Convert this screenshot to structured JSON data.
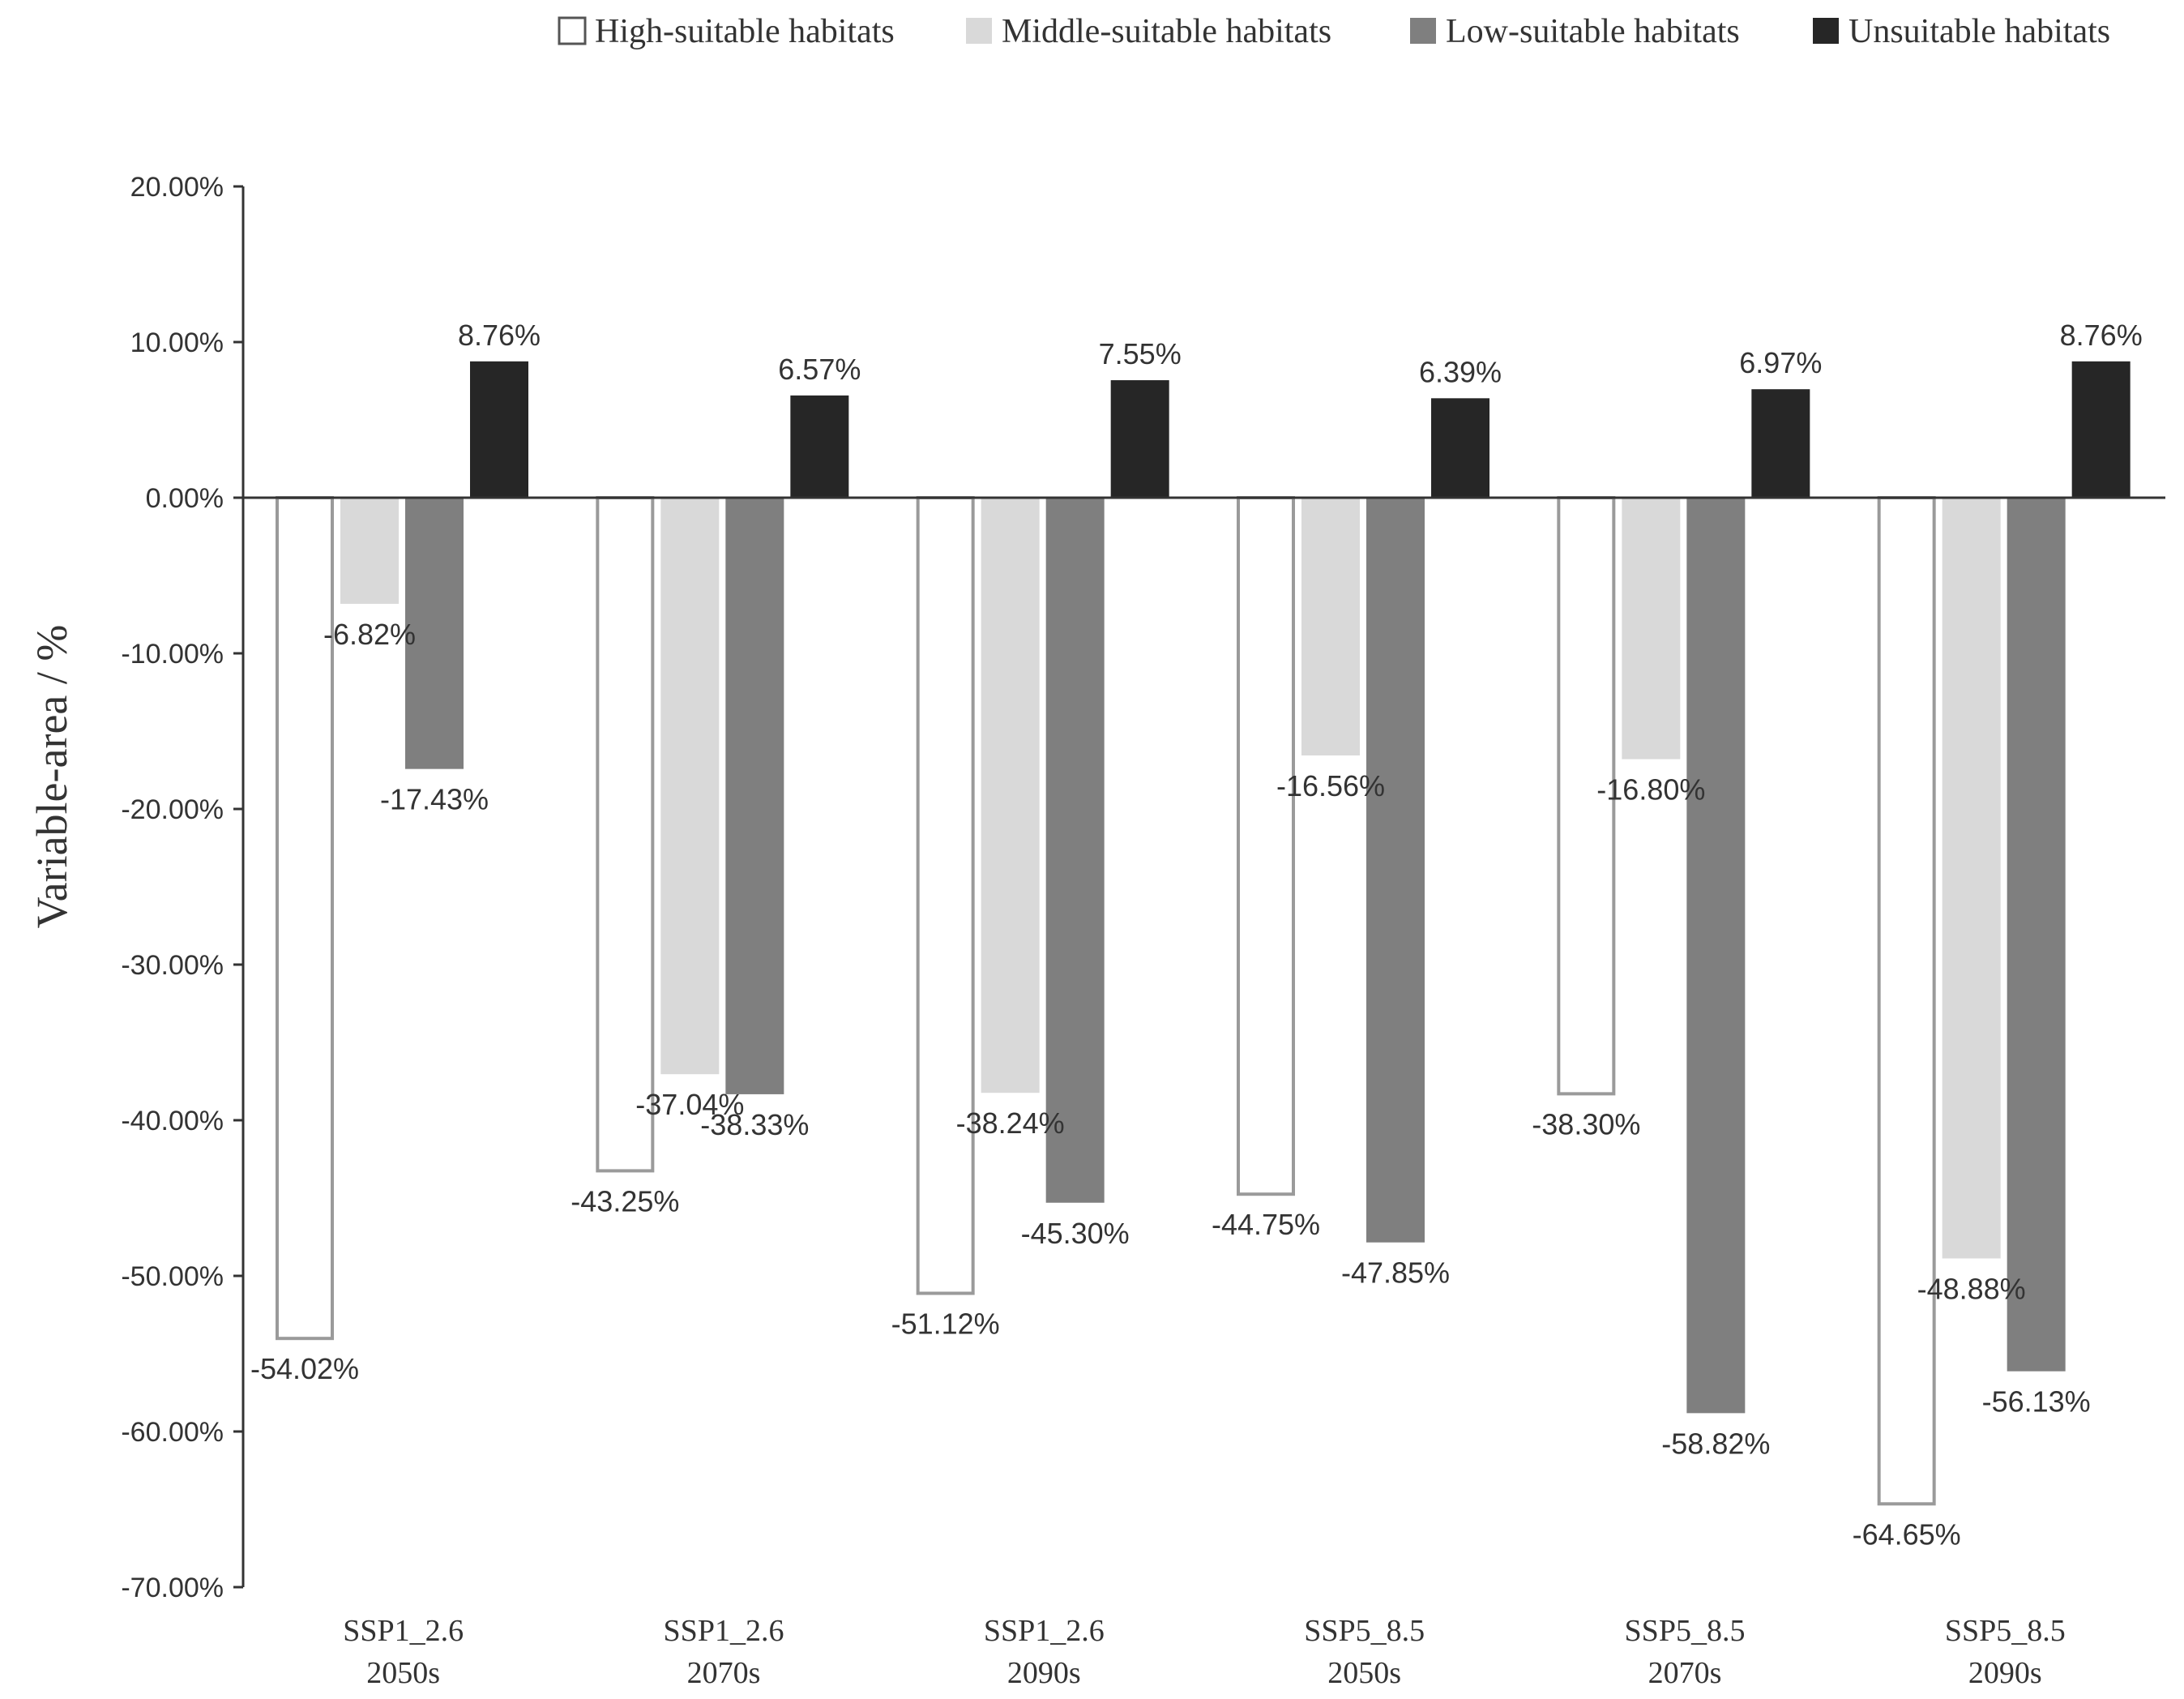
{
  "chart_data": {
    "type": "bar",
    "title": "",
    "xlabel": "",
    "ylabel": "Variable-area / %",
    "ylim": [
      -70,
      20
    ],
    "yticks": [
      20,
      10,
      0,
      -10,
      -20,
      -30,
      -40,
      -50,
      -60,
      -70
    ],
    "ytick_labels": [
      "20.00%",
      "10.00%",
      "0.00%",
      "-10.00%",
      "-20.00%",
      "-30.00%",
      "-40.00%",
      "-50.00%",
      "-60.00%",
      "-70.00%"
    ],
    "grid": false,
    "legend_position": "top-right",
    "categories": [
      {
        "line1": "SSP1_2.6",
        "line2": "2050s"
      },
      {
        "line1": "SSP1_2.6",
        "line2": "2070s"
      },
      {
        "line1": "SSP1_2.6",
        "line2": "2090s"
      },
      {
        "line1": "SSP5_8.5",
        "line2": "2050s"
      },
      {
        "line1": "SSP5_8.5",
        "line2": "2070s"
      },
      {
        "line1": "SSP5_8.5",
        "line2": "2090s"
      }
    ],
    "series": [
      {
        "name": "High-suitable habitats",
        "fill": "#ffffff",
        "stroke": "#9a9a9a",
        "values": [
          -54.02,
          -43.25,
          -51.12,
          -44.75,
          -38.3,
          -64.65
        ],
        "labels": [
          "-54.02%",
          "-43.25%",
          "-51.12%",
          "-44.75%",
          "-38.30%",
          "-64.65%"
        ]
      },
      {
        "name": "Middle-suitable habitats",
        "fill": "#d9d9d9",
        "stroke": "#d9d9d9",
        "values": [
          -6.82,
          -37.04,
          -38.24,
          -16.56,
          -16.8,
          -48.88
        ],
        "labels": [
          "-6.82%",
          "-37.04%",
          "-38.24%",
          "-16.56%",
          "-16.80%",
          "-48.88%"
        ]
      },
      {
        "name": "Low-suitable habitats",
        "fill": "#7f7f7f",
        "stroke": "#7f7f7f",
        "values": [
          -17.43,
          -38.33,
          -45.3,
          -47.85,
          -58.82,
          -56.13
        ],
        "labels": [
          "-17.43%",
          "-38.33%",
          "-45.30%",
          "-47.85%",
          "-58.82%",
          "-56.13%"
        ]
      },
      {
        "name": "Unsuitable habitats",
        "fill": "#262626",
        "stroke": "#262626",
        "values": [
          8.76,
          6.57,
          7.55,
          6.39,
          6.97,
          8.76
        ],
        "labels": [
          "8.76%",
          "6.57%",
          "7.55%",
          "6.39%",
          "6.97%",
          "8.76%"
        ]
      }
    ]
  }
}
